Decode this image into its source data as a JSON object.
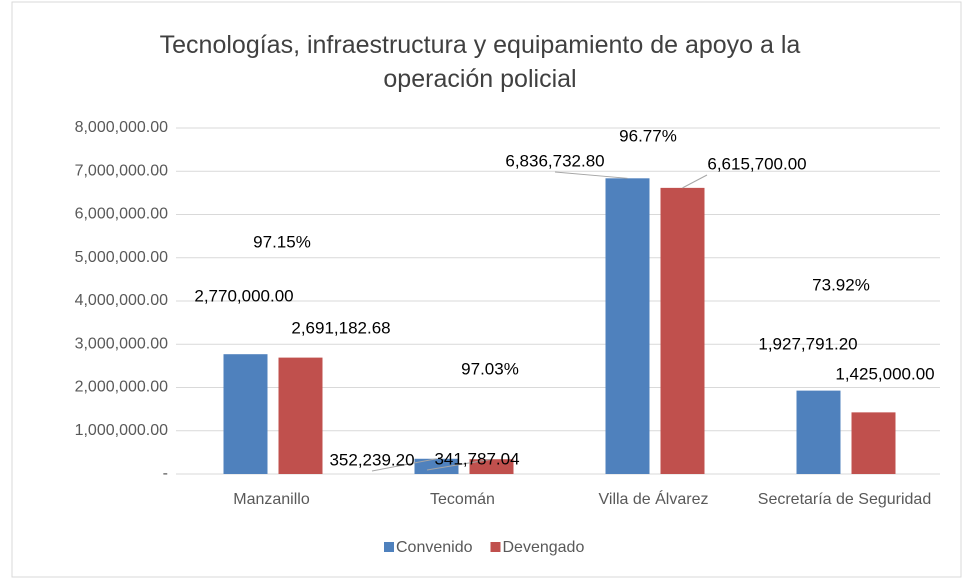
{
  "chart_data": {
    "type": "bar",
    "title": "Tecnologías, infraestructura y equipamiento de apoyo a la operación policial",
    "categories": [
      "Manzanillo",
      "Tecomán",
      "Villa de Álvarez",
      "Secretaría de Seguridad"
    ],
    "series": [
      {
        "name": "Convenido",
        "color": "#4f81bd",
        "values": [
          2770000.0,
          352239.2,
          6836732.8,
          1927791.2
        ],
        "value_labels": [
          "2,770,000.00",
          "352,239.20",
          "6,836,732.80",
          "1,927,791.20"
        ]
      },
      {
        "name": "Devengado",
        "color": "#c0504d",
        "values": [
          2691182.68,
          341787.04,
          6615700.0,
          1425000.0
        ],
        "value_labels": [
          "2,691,182.68",
          "341,787.04",
          "6,615,700.00",
          "1,425,000.00"
        ]
      }
    ],
    "annotations": [
      "97.15%",
      "97.03%",
      "96.77%",
      "73.92%"
    ],
    "ylim": [
      0,
      8000000
    ],
    "yticks": [
      {
        "value": 0,
        "label": "-"
      },
      {
        "value": 1000000,
        "label": "1,000,000.00"
      },
      {
        "value": 2000000,
        "label": "2,000,000.00"
      },
      {
        "value": 3000000,
        "label": "3,000,000.00"
      },
      {
        "value": 4000000,
        "label": "4,000,000.00"
      },
      {
        "value": 5000000,
        "label": "5,000,000.00"
      },
      {
        "value": 6000000,
        "label": "6,000,000.00"
      },
      {
        "value": 7000000,
        "label": "7,000,000.00"
      },
      {
        "value": 8000000,
        "label": "8,000,000.00"
      }
    ],
    "grid": true,
    "legend": "bottom"
  }
}
